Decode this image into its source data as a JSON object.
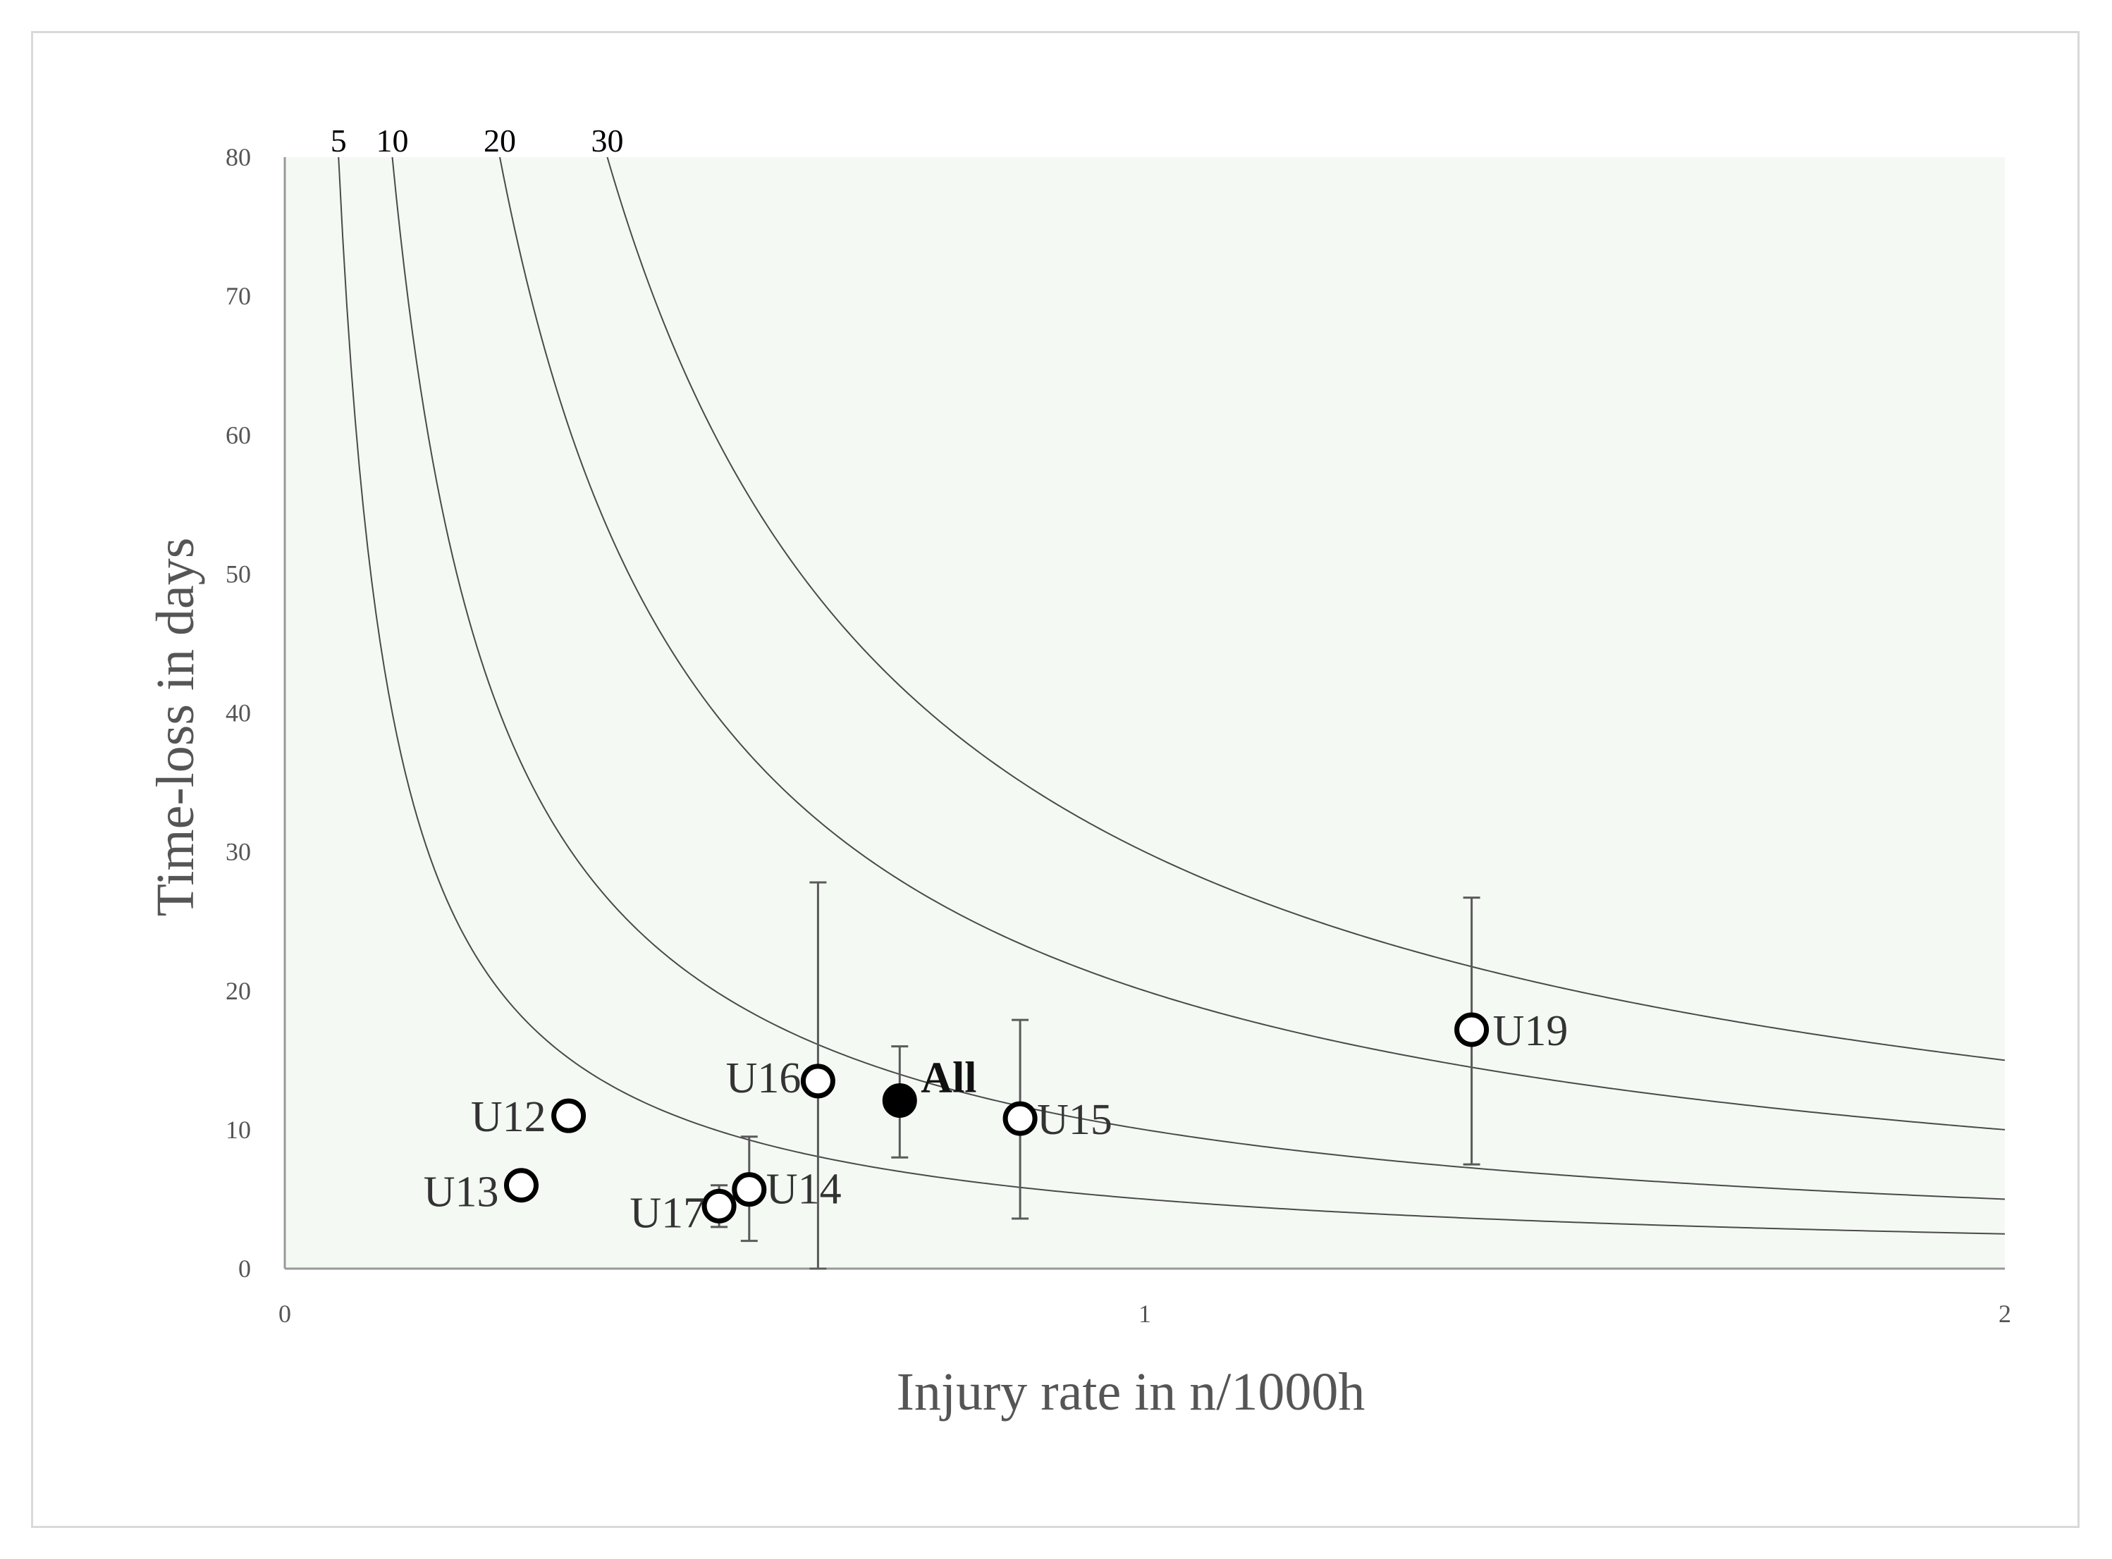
{
  "chart_data": {
    "type": "scatter",
    "xlabel": "Injury rate in n/1000h",
    "ylabel": "Time-loss in days",
    "xlim": [
      0,
      2
    ],
    "ylim": [
      0,
      80
    ],
    "x_ticks": [
      "0",
      "1",
      "2"
    ],
    "y_ticks": [
      "0",
      "10",
      "20",
      "30",
      "40",
      "50",
      "60",
      "70",
      "80"
    ],
    "grid": false,
    "background_color": "#f4f9f4",
    "iso_burden_curves": [
      {
        "label": "5",
        "burden": 5
      },
      {
        "label": "10",
        "burden": 10
      },
      {
        "label": "20",
        "burden": 20
      },
      {
        "label": "30",
        "burden": 30
      }
    ],
    "points": [
      {
        "label": "U12",
        "x": 0.33,
        "y": 11.0,
        "filled": false
      },
      {
        "label": "U13",
        "x": 0.275,
        "y": 6.0,
        "filled": false
      },
      {
        "label": "U17",
        "x": 0.505,
        "y": 4.5,
        "y_err": [
          3.0,
          6.0
        ],
        "filled": false
      },
      {
        "label": "U14",
        "x": 0.54,
        "y": 5.7,
        "y_err": [
          2.0,
          9.5
        ],
        "filled": false
      },
      {
        "label": "U16",
        "x": 0.62,
        "y": 13.5,
        "y_err": [
          0,
          27.8
        ],
        "filled": false
      },
      {
        "label": "All",
        "x": 0.715,
        "y": 12.1,
        "y_err": [
          8.0,
          16.0
        ],
        "filled": true
      },
      {
        "label": "U15",
        "x": 0.855,
        "y": 10.8,
        "y_err": [
          3.6,
          17.9
        ],
        "filled": false
      },
      {
        "label": "U19",
        "x": 1.38,
        "y": 17.2,
        "y_err": [
          7.5,
          26.7
        ],
        "filled": false
      }
    ]
  }
}
